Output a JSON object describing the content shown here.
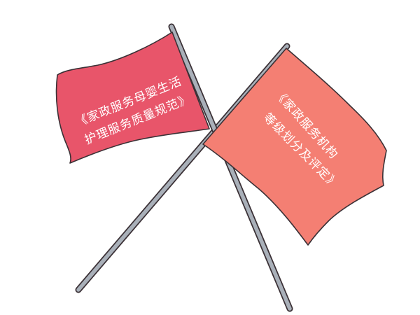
{
  "flags": [
    {
      "text_lines": [
        "《家政服务母婴生活",
        "护理服务质量规范》"
      ],
      "color": "#E8556A"
    },
    {
      "text_lines": [
        "《家政服务机构",
        "等级划分及评定》"
      ],
      "color": "#F47F73"
    }
  ],
  "colors": {
    "pole": "#A9B0B9",
    "pole_outline": "#3b3136",
    "background": "#ffffff"
  }
}
